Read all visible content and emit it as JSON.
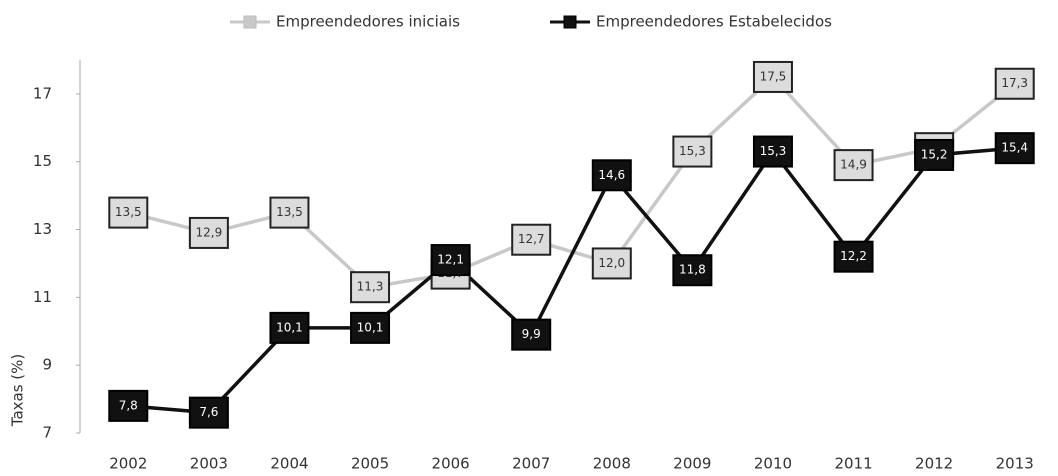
{
  "chart_data": {
    "type": "line",
    "y_label": "Taxas (%)",
    "categories": [
      "2002",
      "2003",
      "2004",
      "2005",
      "2006",
      "2007",
      "2008",
      "2009",
      "2010",
      "2011",
      "2012",
      "2013"
    ],
    "series": [
      {
        "name": "Empreendedores iniciais",
        "color": "#c8c8c8",
        "values": [
          13.5,
          12.9,
          13.5,
          11.3,
          11.7,
          12.7,
          12.0,
          15.3,
          17.5,
          14.9,
          15.4,
          17.3
        ],
        "value_labels": [
          "13,5",
          "12,9",
          "13,5",
          "11,3",
          "11,7",
          "12,7",
          "12,0",
          "15,3",
          "17,5",
          "14,9",
          "15,4",
          "17,3"
        ]
      },
      {
        "name": "Empreendedores Estabelecidos",
        "color": "#111111",
        "values": [
          7.8,
          7.6,
          10.1,
          10.1,
          12.1,
          9.9,
          14.6,
          11.8,
          15.3,
          12.2,
          15.2,
          15.4
        ],
        "value_labels": [
          "7,8",
          "7,6",
          "10,1",
          "10,1",
          "12,1",
          "9,9",
          "14,6",
          "11,8",
          "15,3",
          "12,2",
          "15,2",
          "15,4"
        ]
      }
    ],
    "ylim": [
      7,
      18
    ],
    "yticks": [
      7,
      9,
      11,
      13,
      15,
      17
    ],
    "grid": false,
    "legend": "top"
  }
}
